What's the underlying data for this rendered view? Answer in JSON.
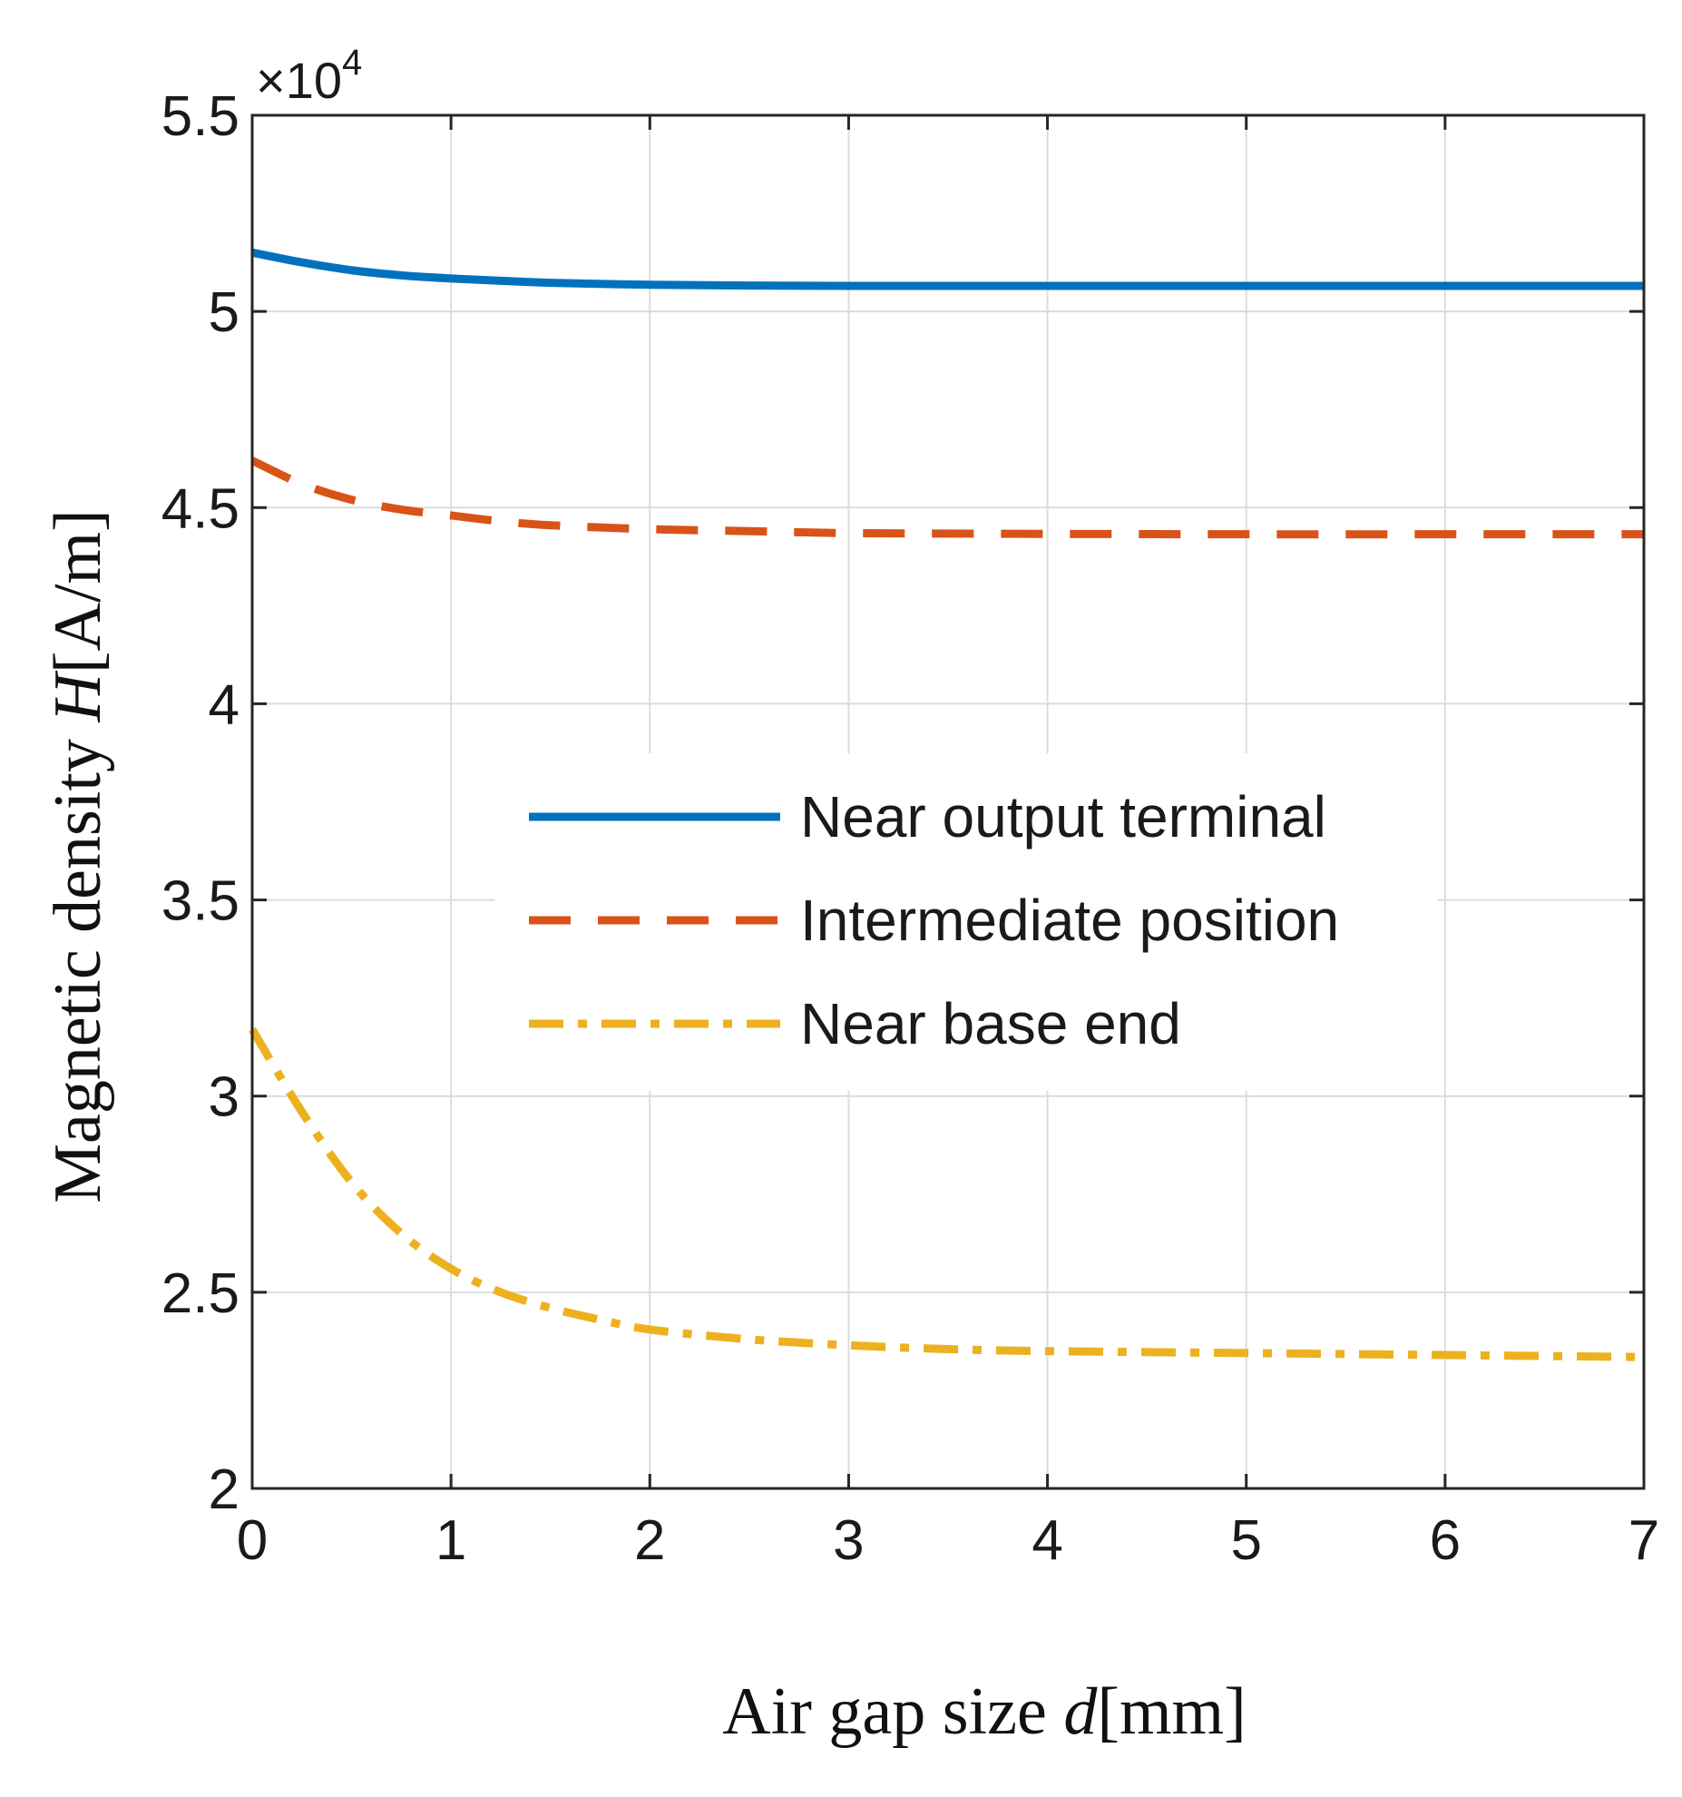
{
  "chart_data": {
    "type": "line",
    "xlabel": {
      "prefix": "Air gap size ",
      "variable": "d",
      "unit": "[mm]"
    },
    "ylabel": {
      "prefix": "Magnetic density ",
      "variable": "H",
      "unit": "[A/m]"
    },
    "y_multiplier": {
      "base": "×10",
      "exponent": "4"
    },
    "xlim": [
      0,
      7
    ],
    "ylim": [
      2,
      5.5
    ],
    "x_ticks": [
      0,
      1,
      2,
      3,
      4,
      5,
      6,
      7
    ],
    "x_tick_labels": [
      "0",
      "1",
      "2",
      "3",
      "4",
      "5",
      "6",
      "7"
    ],
    "y_ticks": [
      2,
      2.5,
      3,
      3.5,
      4,
      4.5,
      5,
      5.5
    ],
    "y_tick_labels": [
      "2",
      "2.5",
      "3",
      "3.5",
      "4",
      "4.5",
      "5",
      "5.5"
    ],
    "grid": true,
    "legend_position": "center-right",
    "series": [
      {
        "name": "Near output terminal",
        "color": "#0072BD",
        "style": "solid",
        "x": [
          0,
          0.25,
          0.5,
          0.75,
          1,
          1.25,
          1.5,
          2,
          2.5,
          3,
          4,
          5,
          6,
          7
        ],
        "y": [
          5.15,
          5.125,
          5.105,
          5.092,
          5.084,
          5.078,
          5.073,
          5.068,
          5.066,
          5.065,
          5.065,
          5.065,
          5.065,
          5.065
        ]
      },
      {
        "name": "Intermediate position",
        "color": "#D95319",
        "style": "dashed",
        "x": [
          0,
          0.25,
          0.5,
          0.75,
          1,
          1.25,
          1.5,
          2,
          2.5,
          3,
          4,
          5,
          6,
          7
        ],
        "y": [
          4.62,
          4.56,
          4.52,
          4.495,
          4.48,
          4.465,
          4.455,
          4.445,
          4.44,
          4.435,
          4.433,
          4.432,
          4.432,
          4.432
        ]
      },
      {
        "name": "Near base end",
        "color": "#EDB120",
        "style": "dash-dot",
        "x": [
          0,
          0.25,
          0.5,
          0.75,
          1,
          1.25,
          1.5,
          1.75,
          2,
          2.5,
          3,
          3.5,
          4,
          5,
          6,
          7
        ],
        "y": [
          3.17,
          2.96,
          2.78,
          2.65,
          2.56,
          2.5,
          2.46,
          2.43,
          2.405,
          2.38,
          2.365,
          2.355,
          2.35,
          2.345,
          2.34,
          2.335
        ]
      }
    ]
  }
}
